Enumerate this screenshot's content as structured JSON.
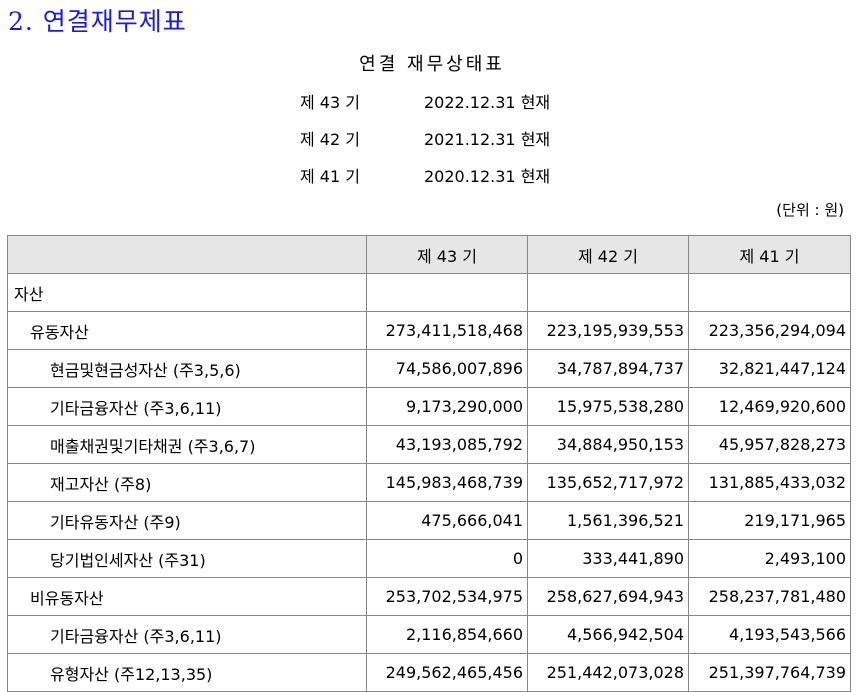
{
  "section_title": "2. 연결재무제표",
  "statement_title": "연결 재무상태표",
  "periods": [
    {
      "label": "제 43 기",
      "date": "2022.12.31 현재"
    },
    {
      "label": "제 42 기",
      "date": "2021.12.31 현재"
    },
    {
      "label": "제 41 기",
      "date": "2020.12.31 현재"
    }
  ],
  "unit": "(단위 : 원)",
  "table": {
    "columns": [
      "",
      "제 43 기",
      "제 42 기",
      "제 41 기"
    ],
    "rows": [
      {
        "label": "자산",
        "level": 0,
        "values": [
          "",
          "",
          ""
        ]
      },
      {
        "label": "유동자산",
        "level": 1,
        "values": [
          "273,411,518,468",
          "223,195,939,553",
          "223,356,294,094"
        ]
      },
      {
        "label": "현금및현금성자산 (주3,5,6)",
        "level": 2,
        "values": [
          "74,586,007,896",
          "34,787,894,737",
          "32,821,447,124"
        ]
      },
      {
        "label": "기타금융자산 (주3,6,11)",
        "level": 2,
        "values": [
          "9,173,290,000",
          "15,975,538,280",
          "12,469,920,600"
        ]
      },
      {
        "label": "매출채권및기타채권 (주3,6,7)",
        "level": 2,
        "values": [
          "43,193,085,792",
          "34,884,950,153",
          "45,957,828,273"
        ]
      },
      {
        "label": "재고자산 (주8)",
        "level": 2,
        "values": [
          "145,983,468,739",
          "135,652,717,972",
          "131,885,433,032"
        ]
      },
      {
        "label": "기타유동자산 (주9)",
        "level": 2,
        "values": [
          "475,666,041",
          "1,561,396,521",
          "219,171,965"
        ]
      },
      {
        "label": "당기법인세자산 (주31)",
        "level": 2,
        "values": [
          "0",
          "333,441,890",
          "2,493,100"
        ]
      },
      {
        "label": "비유동자산",
        "level": 1,
        "values": [
          "253,702,534,975",
          "258,627,694,943",
          "258,237,781,480"
        ]
      },
      {
        "label": "기타금융자산 (주3,6,11)",
        "level": 2,
        "values": [
          "2,116,854,660",
          "4,566,942,504",
          "4,193,543,566"
        ]
      },
      {
        "label": "유형자산 (주12,13,35)",
        "level": 2,
        "values": [
          "249,562,465,456",
          "251,442,073,028",
          "251,397,764,739"
        ]
      }
    ]
  }
}
